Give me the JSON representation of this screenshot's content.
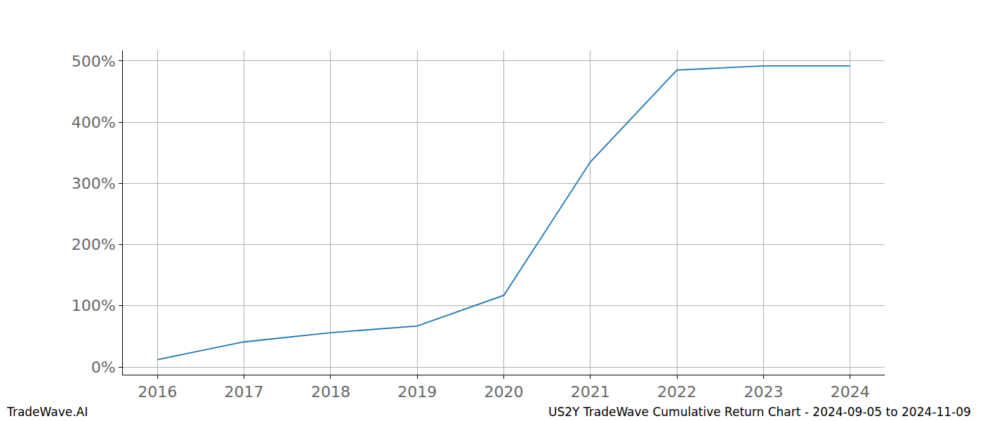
{
  "chart_data": {
    "type": "line",
    "annotations": [
      "TradeWave.AI",
      "US2Y TradeWave Cumulative Return Chart - 2024-09-05 to 2024-11-09"
    ],
    "x": [
      2016,
      2017,
      2018,
      2019,
      2020,
      2021,
      2022,
      2023,
      2024
    ],
    "values": [
      12,
      41,
      56,
      67,
      117,
      335,
      485,
      492,
      492
    ],
    "color": "#1f77b4",
    "xlim": [
      2015.6,
      2024.4
    ],
    "xticks": [
      2016,
      2017,
      2018,
      2019,
      2020,
      2021,
      2022,
      2023,
      2024
    ],
    "ylim": [
      -12.6,
      517
    ],
    "yticks": [
      {
        "value": 0,
        "label": "0%"
      },
      {
        "value": 100,
        "label": "100%"
      },
      {
        "value": 200,
        "label": "200%"
      },
      {
        "value": 300,
        "label": "300%"
      },
      {
        "value": 400,
        "label": "400%"
      },
      {
        "value": 500,
        "label": "500%"
      }
    ],
    "grid": true
  }
}
